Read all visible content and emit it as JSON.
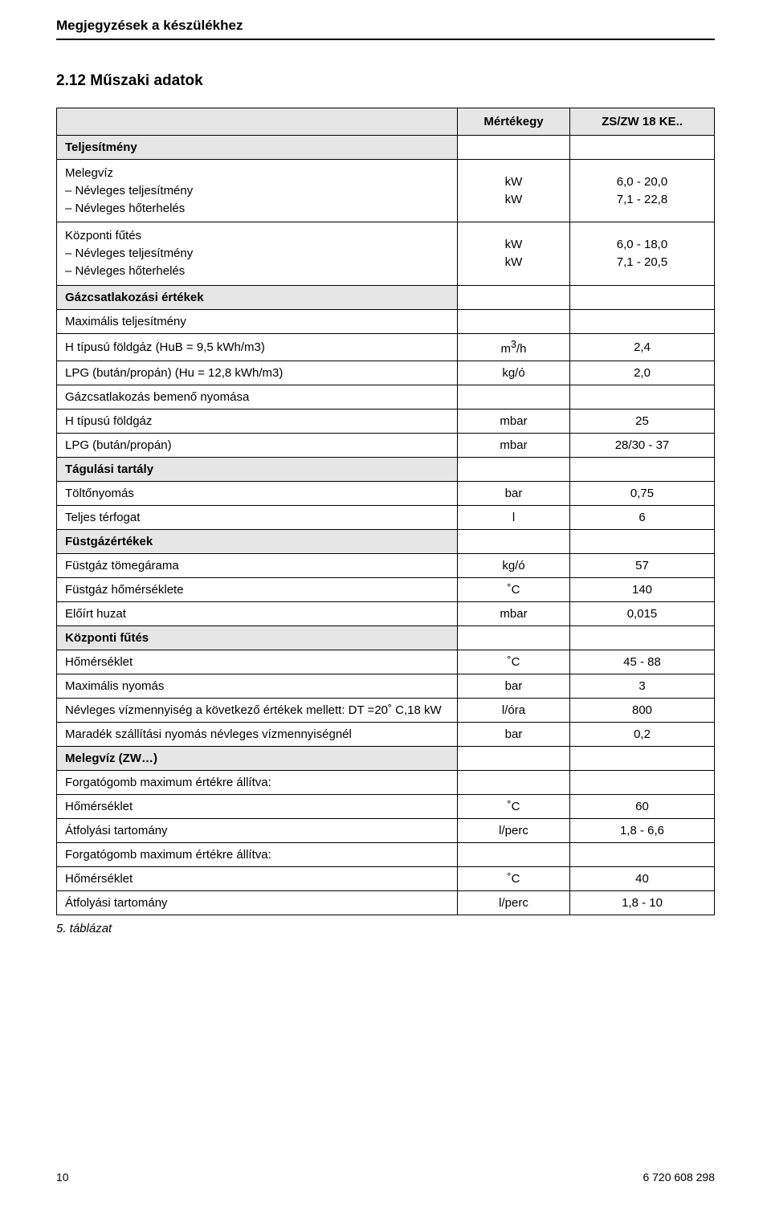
{
  "page_header": "Megjegyzések a készülékhez",
  "section": "2.12   Műszaki adatok",
  "col_unit": "Mértékegy",
  "col_model": "ZS/ZW 18 KE..",
  "rows": [
    {
      "type": "section",
      "label": "Teljesítmény"
    },
    {
      "type": "multi",
      "label": "Melegvíz<br>– Névleges teljesítmény<br>– Névleges hőterhelés",
      "unit": "kW<br>kW",
      "val": "6,0 - 20,0<br>7,1 - 22,8"
    },
    {
      "type": "multi",
      "label": "Központi fűtés<br>– Névleges teljesítmény<br>– Névleges hőterhelés",
      "unit": "kW<br>kW",
      "val": "6,0 - 18,0<br>7,1 - 20,5"
    },
    {
      "type": "section",
      "label": "Gázcsatlakozási értékek"
    },
    {
      "type": "row",
      "label": "Maximális teljesítmény",
      "unit": "",
      "val": ""
    },
    {
      "type": "row",
      "label": "H típusú földgáz (HuB = 9,5 kWh/m3)",
      "unit": "m<sup>3</sup>/h",
      "val": "2,4"
    },
    {
      "type": "row",
      "label": "LPG (bután/propán) (Hu = 12,8 kWh/m3)",
      "unit": "kg/ó",
      "val": "2,0"
    },
    {
      "type": "row",
      "label": "Gázcsatlakozás bemenő nyomása",
      "unit": "",
      "val": ""
    },
    {
      "type": "row",
      "label": "H típusú földgáz",
      "unit": "mbar",
      "val": "25"
    },
    {
      "type": "row",
      "label": "LPG (bután/propán)",
      "unit": "mbar",
      "val": "28/30 - 37"
    },
    {
      "type": "section",
      "label": "Tágulási tartály"
    },
    {
      "type": "row",
      "label": "Töltőnyomás",
      "unit": "bar",
      "val": "0,75"
    },
    {
      "type": "row",
      "label": "Teljes térfogat",
      "unit": "l",
      "val": "6"
    },
    {
      "type": "section",
      "label": "Füstgázértékek"
    },
    {
      "type": "row",
      "label": "Füstgáz tömegárama",
      "unit": "kg/ó",
      "val": "57"
    },
    {
      "type": "row",
      "label": "Füstgáz hőmérséklete",
      "unit": "˚C",
      "val": "140"
    },
    {
      "type": "row",
      "label": "Előírt huzat",
      "unit": "mbar",
      "val": "0,015"
    },
    {
      "type": "section",
      "label": "Központi fűtés"
    },
    {
      "type": "row",
      "label": "Hőmérséklet",
      "unit": "˚C",
      "val": "45 - 88"
    },
    {
      "type": "row",
      "label": "Maximális nyomás",
      "unit": "bar",
      "val": "3"
    },
    {
      "type": "row",
      "label": "Névleges vízmennyiség a következő értékek mellett: DT =20˚ C,18 kW",
      "unit": "l/óra",
      "val": "800"
    },
    {
      "type": "row",
      "label": "Maradék szállítási nyomás névleges vízmennyiségnél",
      "unit": "bar",
      "val": "0,2"
    },
    {
      "type": "section",
      "label": "Melegvíz (ZW…)"
    },
    {
      "type": "row",
      "label": "Forgatógomb maximum értékre állítva:",
      "unit": "",
      "val": ""
    },
    {
      "type": "row",
      "label": "Hőmérséklet",
      "unit": "˚C",
      "val": "60"
    },
    {
      "type": "row",
      "label": "Átfolyási tartomány",
      "unit": "l/perc",
      "val": "1,8 - 6,6"
    },
    {
      "type": "row",
      "label": "Forgatógomb maximum értékre állítva:",
      "unit": "",
      "val": ""
    },
    {
      "type": "row",
      "label": "Hőmérséklet",
      "unit": "˚C",
      "val": "40"
    },
    {
      "type": "row",
      "label": "Átfolyási tartomány",
      "unit": "l/perc",
      "val": "1,8 - 10"
    }
  ],
  "caption": "5. táblázat",
  "footer_page": "10",
  "footer_code": "6 720 608 298"
}
